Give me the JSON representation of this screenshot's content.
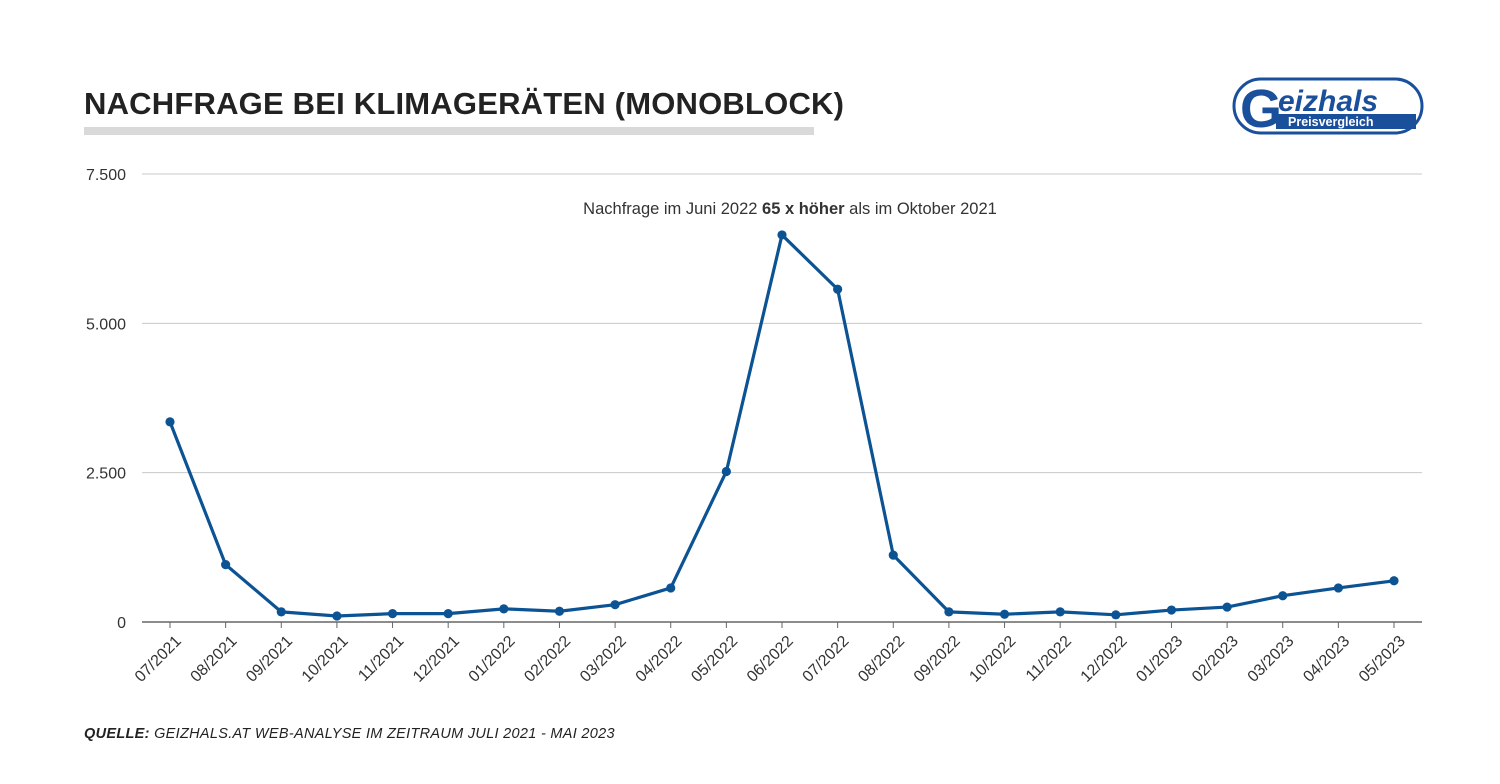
{
  "header": {
    "title": "NACHFRAGE BEI KLIMAGERÄTEN (MONOBLOCK)"
  },
  "logo": {
    "brand": "Geizhals",
    "tagline": "Preisvergleich",
    "color": "#1a4f9c"
  },
  "source": {
    "label": "QUELLE:",
    "text": "GEIZHALS.AT WEB-ANALYSE IM ZEITRAUM JULI 2021 - MAI 2023"
  },
  "chart_data": {
    "type": "line",
    "title": "NACHFRAGE BEI KLIMAGERÄTEN (MONOBLOCK)",
    "xlabel": "",
    "ylabel": "",
    "categories": [
      "07/2021",
      "08/2021",
      "09/2021",
      "10/2021",
      "11/2021",
      "12/2021",
      "01/2022",
      "02/2022",
      "03/2022",
      "04/2022",
      "05/2022",
      "06/2022",
      "07/2022",
      "08/2022",
      "09/2022",
      "10/2022",
      "11/2022",
      "12/2022",
      "01/2023",
      "02/2023",
      "03/2023",
      "04/2023",
      "05/2023"
    ],
    "series": [
      {
        "values": [
          3350,
          960,
          170,
          100,
          140,
          140,
          220,
          180,
          290,
          570,
          2520,
          6480,
          5570,
          1120,
          170,
          130,
          170,
          120,
          200,
          250,
          440,
          570,
          690
        ],
        "color": "#0c5394"
      }
    ],
    "ylim": [
      0,
      7500
    ],
    "yticks": [
      0,
      2500,
      5000,
      7500
    ],
    "ytick_labels": [
      "0",
      "2.500",
      "5.000",
      "7.500"
    ],
    "grid": true,
    "legend": "none",
    "annotation": {
      "pre": "Nachfrage im Juni 2022 ",
      "bold": "65 x höher",
      "post": " als im Oktober 2021"
    }
  }
}
